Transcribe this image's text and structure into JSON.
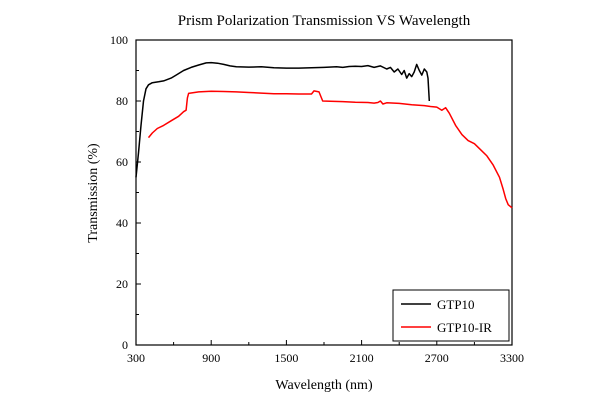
{
  "chart_data": {
    "type": "line",
    "title": "Prism Polarization Transmission VS Wavelength",
    "xlabel": "Wavelength (nm)",
    "ylabel": "Transmission (%)",
    "xlim": [
      300,
      3300
    ],
    "ylim": [
      0,
      100
    ],
    "xticks": [
      300,
      900,
      1500,
      2100,
      2700,
      3300
    ],
    "yticks": [
      0,
      20,
      40,
      60,
      80,
      100
    ],
    "xtick_labels": [
      "300",
      "900",
      "1500",
      "2100",
      "2700",
      "3300"
    ],
    "ytick_labels": [
      "0",
      "20",
      "40",
      "60",
      "80",
      "100"
    ],
    "grid": false,
    "legend_position": "bottom-right",
    "series": [
      {
        "name": "GTP10",
        "color": "#000000",
        "points": [
          [
            300,
            55
          ],
          [
            320,
            63
          ],
          [
            340,
            72
          ],
          [
            360,
            80
          ],
          [
            380,
            84
          ],
          [
            400,
            85.3
          ],
          [
            430,
            86
          ],
          [
            480,
            86.3
          ],
          [
            520,
            86.6
          ],
          [
            580,
            87.5
          ],
          [
            620,
            88.5
          ],
          [
            680,
            90
          ],
          [
            740,
            91
          ],
          [
            800,
            91.8
          ],
          [
            860,
            92.5
          ],
          [
            900,
            92.6
          ],
          [
            950,
            92.4
          ],
          [
            1000,
            92
          ],
          [
            1050,
            91.5
          ],
          [
            1100,
            91.2
          ],
          [
            1200,
            91.1
          ],
          [
            1300,
            91.2
          ],
          [
            1400,
            90.9
          ],
          [
            1500,
            90.8
          ],
          [
            1600,
            90.8
          ],
          [
            1700,
            90.9
          ],
          [
            1800,
            91
          ],
          [
            1900,
            91.2
          ],
          [
            1950,
            91
          ],
          [
            2000,
            91.3
          ],
          [
            2050,
            91.4
          ],
          [
            2100,
            91.3
          ],
          [
            2150,
            91.6
          ],
          [
            2200,
            91
          ],
          [
            2250,
            91.5
          ],
          [
            2300,
            90.5
          ],
          [
            2330,
            91
          ],
          [
            2360,
            89.5
          ],
          [
            2390,
            90.5
          ],
          [
            2420,
            88.7
          ],
          [
            2440,
            90
          ],
          [
            2460,
            87.5
          ],
          [
            2480,
            89
          ],
          [
            2500,
            88
          ],
          [
            2520,
            89.5
          ],
          [
            2540,
            92
          ],
          [
            2560,
            90
          ],
          [
            2580,
            88.5
          ],
          [
            2600,
            90.5
          ],
          [
            2620,
            89.5
          ],
          [
            2630,
            87.5
          ],
          [
            2640,
            80
          ]
        ]
      },
      {
        "name": "GTP10-IR",
        "color": "#ff0000",
        "points": [
          [
            400,
            68
          ],
          [
            430,
            69.5
          ],
          [
            470,
            71
          ],
          [
            520,
            72
          ],
          [
            580,
            73.5
          ],
          [
            640,
            75
          ],
          [
            680,
            76.5
          ],
          [
            700,
            77
          ],
          [
            710,
            81
          ],
          [
            720,
            82.5
          ],
          [
            800,
            83
          ],
          [
            900,
            83.2
          ],
          [
            1000,
            83.1
          ],
          [
            1100,
            83
          ],
          [
            1200,
            82.8
          ],
          [
            1300,
            82.6
          ],
          [
            1400,
            82.4
          ],
          [
            1500,
            82.4
          ],
          [
            1600,
            82.3
          ],
          [
            1700,
            82.3
          ],
          [
            1720,
            83.3
          ],
          [
            1760,
            83
          ],
          [
            1790,
            80
          ],
          [
            1850,
            79.9
          ],
          [
            1950,
            79.8
          ],
          [
            2050,
            79.6
          ],
          [
            2150,
            79.5
          ],
          [
            2200,
            79.3
          ],
          [
            2230,
            79.5
          ],
          [
            2250,
            80
          ],
          [
            2270,
            79
          ],
          [
            2300,
            79.4
          ],
          [
            2400,
            79.2
          ],
          [
            2500,
            78.8
          ],
          [
            2600,
            78.5
          ],
          [
            2650,
            78.2
          ],
          [
            2700,
            78
          ],
          [
            2740,
            77
          ],
          [
            2770,
            77.8
          ],
          [
            2800,
            76
          ],
          [
            2850,
            72
          ],
          [
            2900,
            69
          ],
          [
            2950,
            67
          ],
          [
            3000,
            66
          ],
          [
            3050,
            64
          ],
          [
            3100,
            62
          ],
          [
            3150,
            59
          ],
          [
            3200,
            55
          ],
          [
            3230,
            51
          ],
          [
            3250,
            48
          ],
          [
            3270,
            46
          ],
          [
            3300,
            45
          ]
        ]
      }
    ]
  }
}
